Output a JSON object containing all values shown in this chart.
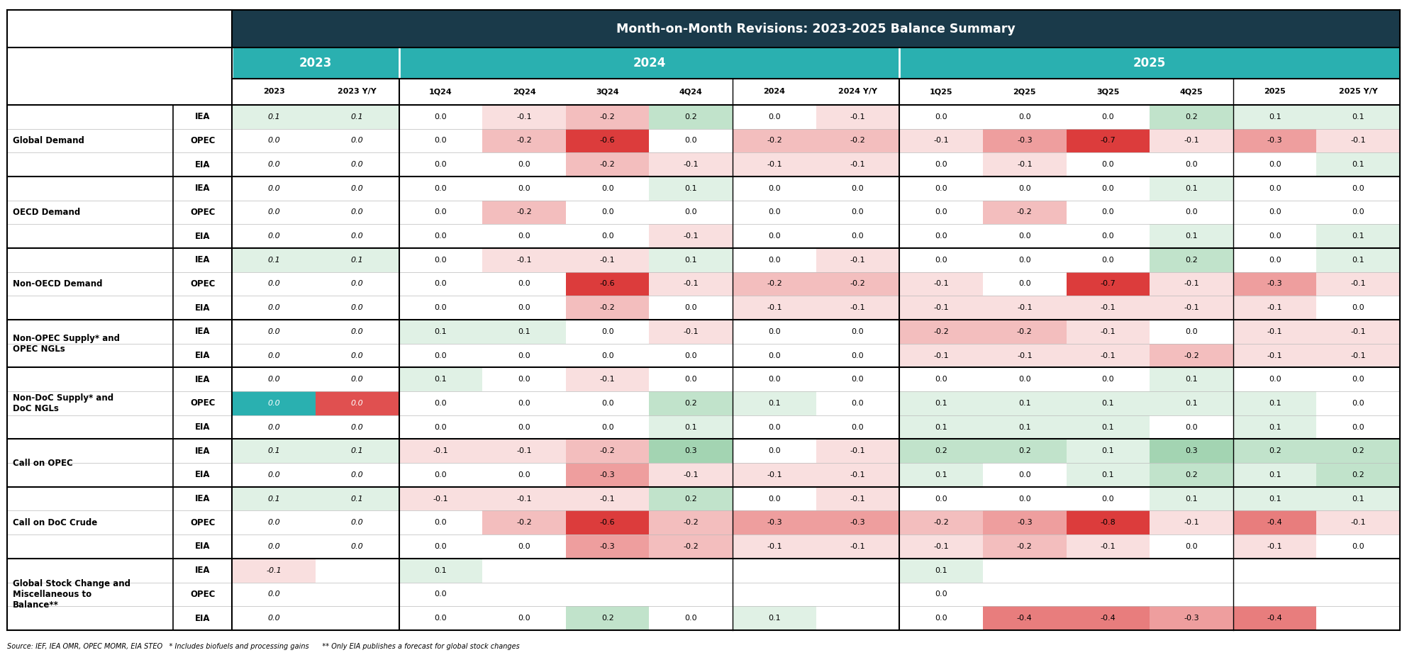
{
  "title": "Month-on-Month Revisions: 2023-2025 Balance Summary",
  "title_bg": "#1a3a4a",
  "title_fg": "#ffffff",
  "year_headers": [
    "2023",
    "2024",
    "2025"
  ],
  "year_header_bg": "#2ab0b0",
  "year_header_fg": "#ffffff",
  "col_headers": [
    "2023",
    "2023 Y/Y",
    "1Q24",
    "2Q24",
    "3Q24",
    "4Q24",
    "2024",
    "2024 Y/Y",
    "1Q25",
    "2Q25",
    "3Q25",
    "4Q25",
    "2025",
    "2025 Y/Y"
  ],
  "row_groups": [
    {
      "name": "Global Demand",
      "sources": [
        "IEA",
        "OPEC",
        "EIA"
      ]
    },
    {
      "name": "OECD Demand",
      "sources": [
        "IEA",
        "OPEC",
        "EIA"
      ]
    },
    {
      "name": "Non-OECD Demand",
      "sources": [
        "IEA",
        "OPEC",
        "EIA"
      ]
    },
    {
      "name": "Non-OPEC Supply* and\nOPEC NGLs",
      "sources": [
        "IEA",
        "EIA"
      ]
    },
    {
      "name": "Non-DoC Supply* and\nDoC NGLs",
      "sources": [
        "IEA",
        "OPEC",
        "EIA"
      ]
    },
    {
      "name": "Call on OPEC",
      "sources": [
        "IEA",
        "EIA"
      ]
    },
    {
      "name": "Call on DoC Crude",
      "sources": [
        "IEA",
        "OPEC",
        "EIA"
      ]
    },
    {
      "name": "Global Stock Change and\nMiscellaneous to\nBalance**",
      "sources": [
        "IEA",
        "OPEC",
        "EIA"
      ]
    }
  ],
  "data": {
    "Global Demand": {
      "IEA": [
        0.1,
        0.1,
        0.0,
        -0.1,
        -0.2,
        0.2,
        0.0,
        -0.1,
        0.0,
        0.0,
        0.0,
        0.2,
        0.1,
        0.1
      ],
      "OPEC": [
        0.0,
        0.0,
        0.0,
        -0.2,
        -0.6,
        0.0,
        -0.2,
        -0.2,
        -0.1,
        -0.3,
        -0.7,
        -0.1,
        -0.3,
        -0.1
      ],
      "EIA": [
        0.0,
        0.0,
        0.0,
        0.0,
        -0.2,
        -0.1,
        -0.1,
        -0.1,
        0.0,
        -0.1,
        0.0,
        0.0,
        0.0,
        0.1
      ]
    },
    "OECD Demand": {
      "IEA": [
        0.0,
        0.0,
        0.0,
        0.0,
        0.0,
        0.1,
        0.0,
        0.0,
        0.0,
        0.0,
        0.0,
        0.1,
        0.0,
        0.0
      ],
      "OPEC": [
        0.0,
        0.0,
        0.0,
        -0.2,
        0.0,
        0.0,
        0.0,
        0.0,
        0.0,
        -0.2,
        0.0,
        0.0,
        0.0,
        0.0
      ],
      "EIA": [
        0.0,
        0.0,
        0.0,
        0.0,
        0.0,
        -0.1,
        0.0,
        0.0,
        0.0,
        0.0,
        0.0,
        0.1,
        0.0,
        0.1
      ]
    },
    "Non-OECD Demand": {
      "IEA": [
        0.1,
        0.1,
        0.0,
        -0.1,
        -0.1,
        0.1,
        0.0,
        -0.1,
        0.0,
        0.0,
        0.0,
        0.2,
        0.0,
        0.1
      ],
      "OPEC": [
        0.0,
        0.0,
        0.0,
        0.0,
        -0.6,
        -0.1,
        -0.2,
        -0.2,
        -0.1,
        0.0,
        -0.7,
        -0.1,
        -0.3,
        -0.1
      ],
      "EIA": [
        0.0,
        0.0,
        0.0,
        0.0,
        -0.2,
        0.0,
        -0.1,
        -0.1,
        -0.1,
        -0.1,
        -0.1,
        -0.1,
        -0.1,
        0.0
      ]
    },
    "Non-OPEC Supply* and\nOPEC NGLs": {
      "IEA": [
        0.0,
        0.0,
        0.1,
        0.1,
        0.0,
        -0.1,
        0.0,
        0.0,
        -0.2,
        -0.2,
        -0.1,
        0.0,
        -0.1,
        -0.1
      ],
      "EIA": [
        0.0,
        0.0,
        0.0,
        0.0,
        0.0,
        0.0,
        0.0,
        0.0,
        -0.1,
        -0.1,
        -0.1,
        -0.2,
        -0.1,
        -0.1
      ]
    },
    "Non-DoC Supply* and\nDoC NGLs": {
      "IEA": [
        0.0,
        0.0,
        0.1,
        0.0,
        -0.1,
        0.0,
        0.0,
        0.0,
        0.0,
        0.0,
        0.0,
        0.1,
        0.0,
        0.0
      ],
      "OPEC": [
        0.0,
        0.0,
        0.0,
        0.0,
        0.0,
        0.2,
        0.1,
        0.0,
        0.1,
        0.1,
        0.1,
        0.1,
        0.1,
        0.0
      ],
      "EIA": [
        0.0,
        0.0,
        0.0,
        0.0,
        0.0,
        0.1,
        0.0,
        0.0,
        0.1,
        0.1,
        0.1,
        0.0,
        0.1,
        0.0
      ]
    },
    "Call on OPEC": {
      "IEA": [
        0.1,
        0.1,
        -0.1,
        -0.1,
        -0.2,
        0.3,
        0.0,
        -0.1,
        0.2,
        0.2,
        0.1,
        0.3,
        0.2,
        0.2
      ],
      "EIA": [
        0.0,
        0.0,
        0.0,
        0.0,
        -0.3,
        -0.1,
        -0.1,
        -0.1,
        0.1,
        0.0,
        0.1,
        0.2,
        0.1,
        0.2
      ]
    },
    "Call on DoC Crude": {
      "IEA": [
        0.1,
        0.1,
        -0.1,
        -0.1,
        -0.1,
        0.2,
        0.0,
        -0.1,
        0.0,
        0.0,
        0.0,
        0.1,
        0.1,
        0.1
      ],
      "OPEC": [
        0.0,
        0.0,
        0.0,
        -0.2,
        -0.6,
        -0.2,
        -0.3,
        -0.3,
        -0.2,
        -0.3,
        -0.8,
        -0.1,
        -0.4,
        -0.1
      ],
      "EIA": [
        0.0,
        0.0,
        0.0,
        0.0,
        -0.3,
        -0.2,
        -0.1,
        -0.1,
        -0.1,
        -0.2,
        -0.1,
        0.0,
        -0.1,
        0.0
      ]
    },
    "Global Stock Change and\nMiscellaneous to\nBalance**": {
      "IEA": [
        -0.1,
        null,
        0.1,
        null,
        null,
        null,
        null,
        null,
        0.1,
        null,
        null,
        null,
        null,
        null
      ],
      "OPEC": [
        0.0,
        null,
        0.0,
        null,
        null,
        null,
        null,
        null,
        0.0,
        null,
        null,
        null,
        null,
        null
      ],
      "EIA": [
        0.0,
        null,
        0.0,
        0.0,
        0.2,
        0.0,
        0.1,
        null,
        0.0,
        -0.4,
        -0.4,
        -0.3,
        -0.4,
        null
      ]
    }
  },
  "footnote": "Source: IEF, IEA OMR, OPEC MOMR, EIA STEO   * Includes biofuels and processing gains      ** Only EIA publishes a forecast for global stock changes",
  "color_scale_max": 0.6,
  "special_cells": {
    "Non-DoC Supply* and\nDoC NGLs_OPEC_0": {
      "bg": "#2ab0b0",
      "fg": "white"
    },
    "Non-DoC Supply* and\nDoC NGLs_OPEC_1": {
      "bg": "#e05050",
      "fg": "white"
    }
  },
  "border_color": "#000000",
  "group_border_color": "#000000",
  "row_line_color": "#cccccc"
}
